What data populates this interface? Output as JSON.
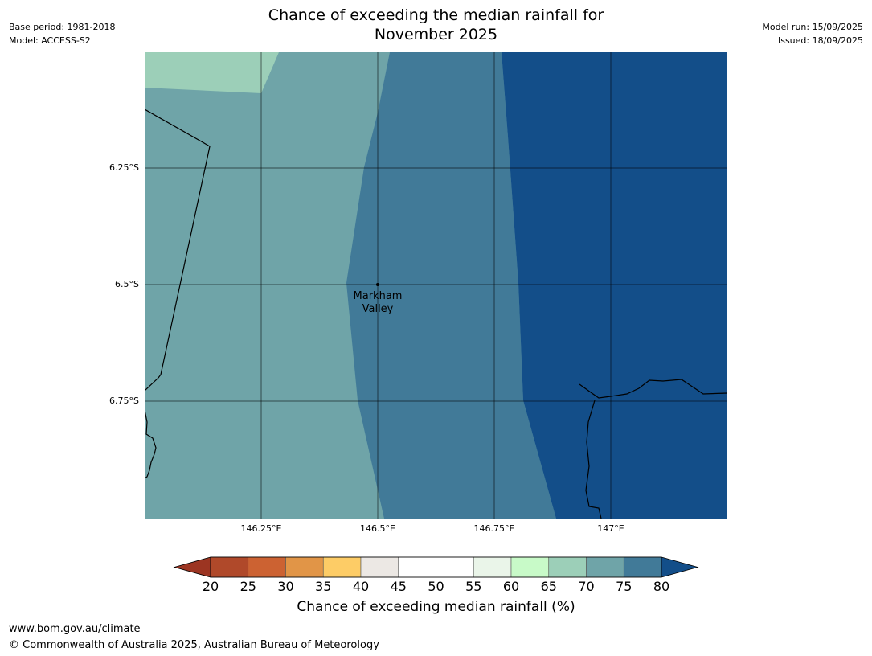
{
  "header": {
    "title_line1": "Chance of exceeding the median rainfall for",
    "title_line2": "November 2025",
    "base_period": "Base period: 1981-2018",
    "model": "Model: ACCESS-S2",
    "model_run": "Model run: 15/09/2025",
    "issued": "Issued: 18/09/2025"
  },
  "map": {
    "lat_labels": [
      "6.25°S",
      "6.5°S",
      "6.75°S"
    ],
    "lon_labels": [
      "146.25°E",
      "146.5°E",
      "146.75°E",
      "147°E"
    ],
    "place": {
      "name_line1": "Markham",
      "name_line2": "Valley"
    }
  },
  "colorbar": {
    "label": "Chance of exceeding median rainfall (%)",
    "ticks": [
      "20",
      "25",
      "30",
      "35",
      "40",
      "45",
      "50",
      "55",
      "60",
      "65",
      "70",
      "75",
      "80"
    ],
    "under_color": "#9c3522",
    "over_color": "#134e89",
    "colors": [
      "#b0492a",
      "#cc6232",
      "#e19547",
      "#fdcc66",
      "#ece8e4",
      "#ffffff",
      "#ffffff",
      "#eaf5e9",
      "#c8fac8",
      "#9ccfb8",
      "#6fa4a8",
      "#417a98"
    ]
  },
  "footer": {
    "url": "www.bom.gov.au/climate",
    "copyright": "© Commonwealth of Australia 2025, Australian Bureau of Meteorology"
  }
}
